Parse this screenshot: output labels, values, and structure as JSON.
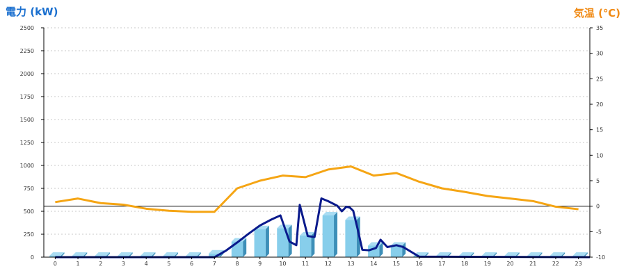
{
  "chart_data": {
    "type": "bar+line",
    "left_axis_title": "電力 (kW)",
    "right_axis_title": "気温 (℃)",
    "x_categories": [
      "0",
      "1",
      "2",
      "3",
      "4",
      "5",
      "6",
      "7",
      "8",
      "9",
      "10",
      "11",
      "12",
      "13",
      "14",
      "15",
      "16",
      "17",
      "18",
      "19",
      "20",
      "21",
      "22",
      "23"
    ],
    "left_ylim": [
      0,
      2500
    ],
    "left_ticks": [
      0,
      250,
      500,
      750,
      1000,
      1250,
      1500,
      1750,
      2000,
      2250,
      2500
    ],
    "right_ylim": [
      -10,
      35
    ],
    "right_ticks": [
      -10,
      -5,
      0,
      5,
      10,
      15,
      20,
      25,
      30,
      35
    ],
    "bars": {
      "axis": "left",
      "values": [
        15,
        15,
        15,
        15,
        15,
        15,
        15,
        40,
        170,
        305,
        315,
        235,
        455,
        405,
        125,
        125,
        15,
        15,
        15,
        15,
        15,
        15,
        15,
        15
      ],
      "color": "#87ceeb"
    },
    "power_line": {
      "axis": "left",
      "color": "#0a1a8c",
      "x": [
        0,
        7,
        7.5,
        8,
        8.5,
        9,
        9.5,
        9.9,
        10.3,
        10.6,
        10.75,
        11.1,
        11.4,
        11.7,
        12,
        12.4,
        12.6,
        12.8,
        12.95,
        13.1,
        13.3,
        13.5,
        13.8,
        14.1,
        14.3,
        14.6,
        15,
        15.3,
        16,
        23.5
      ],
      "values": [
        0,
        0,
        70,
        160,
        255,
        345,
        410,
        455,
        170,
        130,
        570,
        230,
        220,
        640,
        610,
        560,
        500,
        550,
        540,
        505,
        300,
        80,
        75,
        100,
        190,
        110,
        130,
        110,
        5,
        0
      ]
    },
    "temperature_line": {
      "axis": "right",
      "color": "#f5a514",
      "x": [
        0,
        1,
        2,
        3,
        4,
        5,
        6,
        7,
        8,
        9,
        10,
        11,
        12,
        13,
        14,
        15,
        16,
        17,
        18,
        19,
        20,
        21,
        22,
        23
      ],
      "values": [
        0.8,
        1.5,
        0.6,
        0.3,
        -0.5,
        -0.9,
        -1.1,
        -1.1,
        3.5,
        5.0,
        6.0,
        5.7,
        7.2,
        7.8,
        6.0,
        6.5,
        4.8,
        3.5,
        2.8,
        2.0,
        1.5,
        1.0,
        -0.1,
        -0.6
      ],
      "zero_line": 0
    },
    "grid": true
  }
}
